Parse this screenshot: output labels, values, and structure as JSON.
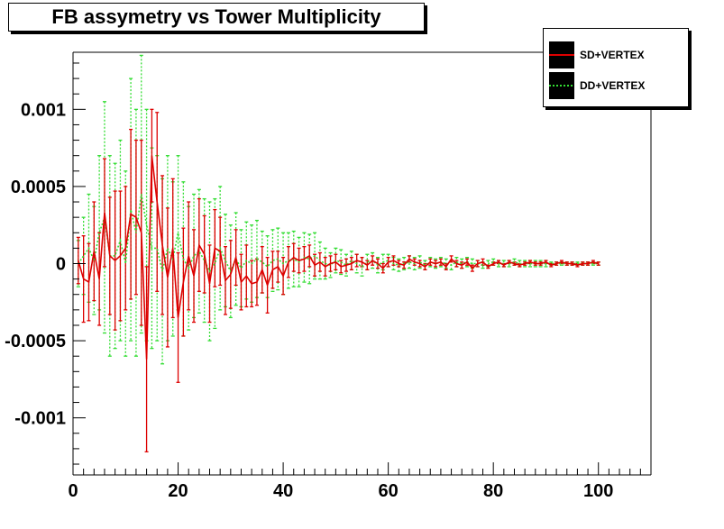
{
  "chart_data": {
    "type": "line",
    "title": "FB assymetry vs Tower Multiplicity",
    "xlabel": "",
    "ylabel": "",
    "xlim": [
      0,
      110
    ],
    "ylim": [
      -0.00137,
      0.00137
    ],
    "x_ticks": [
      0,
      20,
      40,
      60,
      80,
      100
    ],
    "x_tick_labels": [
      "0",
      "20",
      "40",
      "60",
      "80",
      "100"
    ],
    "y_ticks": [
      -0.001,
      -0.0005,
      0,
      0.0005,
      0.001
    ],
    "y_tick_labels": [
      "-0.001",
      "-0.0005",
      "0",
      "0.0005",
      "0.001"
    ],
    "grid": false,
    "legend_position": "top-right",
    "x": [
      1,
      2,
      3,
      4,
      5,
      6,
      7,
      8,
      9,
      10,
      11,
      12,
      13,
      14,
      15,
      16,
      17,
      18,
      19,
      20,
      21,
      22,
      23,
      24,
      25,
      26,
      27,
      28,
      29,
      30,
      31,
      32,
      33,
      34,
      35,
      36,
      37,
      38,
      39,
      40,
      41,
      42,
      43,
      44,
      45,
      46,
      47,
      48,
      49,
      50,
      51,
      52,
      53,
      54,
      55,
      56,
      57,
      58,
      59,
      60,
      61,
      62,
      63,
      64,
      65,
      66,
      67,
      68,
      69,
      70,
      71,
      72,
      73,
      74,
      75,
      76,
      77,
      78,
      79,
      80,
      81,
      82,
      83,
      84,
      85,
      86,
      87,
      88,
      89,
      90,
      91,
      92,
      93,
      94,
      95,
      96,
      97,
      98,
      99,
      100
    ],
    "series": [
      {
        "name": "SD+VERTEX",
        "color": "#dd0000",
        "style": "solid",
        "values": [
          2e-05,
          -0.0001,
          -0.00012,
          8e-05,
          -0.0001,
          0.00033,
          5e-05,
          2e-05,
          5e-05,
          0.0001,
          0.00032,
          0.0003,
          0.0002,
          -0.00062,
          0.0007,
          0.0004,
          0.00012,
          -9e-05,
          0.0001,
          -0.00035,
          -0.00012,
          5e-05,
          -8e-05,
          0.00012,
          6e-05,
          -0.00013,
          0.0001,
          8e-05,
          -0.00011,
          -7e-05,
          4e-05,
          -0.00012,
          -8e-05,
          -0.00013,
          -0.00012,
          -4e-05,
          -0.00014,
          -4e-05,
          -2e-05,
          -8e-05,
          1e-05,
          4e-05,
          2e-05,
          3e-05,
          5e-05,
          -1e-05,
          1e-05,
          -2e-05,
          0.0,
          1e-05,
          -2e-05,
          -1e-05,
          0.0,
          2e-05,
          1e-05,
          -1e-05,
          2e-05,
          0.0,
          -3e-05,
          1e-05,
          2e-05,
          0.0,
          -1e-05,
          3e-05,
          1e-05,
          0.0,
          -2e-05,
          1e-05,
          0.0,
          1e-05,
          -2e-05,
          3e-05,
          0.0,
          -1e-05,
          1e-05,
          -3e-05,
          0.0,
          1e-05,
          -2e-05,
          0.0,
          1e-05,
          -1e-05,
          1e-05,
          0.0,
          -1e-05,
          0.0,
          1e-05,
          0.0,
          0.0,
          1e-05,
          -1e-05,
          0.0,
          1e-05,
          0.0,
          0.0,
          -1e-05,
          0.0,
          0.0,
          1e-05,
          0.0
        ],
        "errors": [
          0.00015,
          0.00028,
          0.00025,
          0.00032,
          0.0003,
          0.00035,
          0.00038,
          0.00045,
          0.00042,
          0.0004,
          0.00055,
          0.0005,
          0.0006,
          0.0006,
          0.0003,
          0.00058,
          0.00045,
          0.00045,
          0.00045,
          0.00042,
          0.00035,
          0.00035,
          0.0003,
          0.0003,
          0.00025,
          0.00025,
          0.00025,
          0.00022,
          0.00022,
          0.00022,
          0.00018,
          0.00018,
          0.0002,
          0.00015,
          0.00015,
          0.00015,
          0.00018,
          0.00012,
          0.0001,
          0.00012,
          0.0001,
          9e-05,
          8e-05,
          8e-05,
          7e-05,
          7e-05,
          6e-05,
          6e-05,
          5e-05,
          5e-05,
          4e-05,
          4e-05,
          4e-05,
          4e-05,
          3e-05,
          3e-05,
          3e-05,
          3e-05,
          3e-05,
          3e-05,
          3e-05,
          2e-05,
          2e-05,
          2e-05,
          2e-05,
          2e-05,
          2e-05,
          2e-05,
          2e-05,
          2e-05,
          2e-05,
          2e-05,
          2e-05,
          2e-05,
          2e-05,
          2e-05,
          2e-05,
          2e-05,
          1e-05,
          1e-05,
          1e-05,
          1e-05,
          1e-05,
          1e-05,
          1e-05,
          1e-05,
          1e-05,
          1e-05,
          1e-05,
          1e-05,
          1e-05,
          1e-05,
          1e-05,
          1e-05,
          1e-05,
          1e-05,
          1e-05,
          1e-05,
          1e-05,
          1e-05
        ]
      },
      {
        "name": "DD+VERTEX",
        "color": "#33dd33",
        "style": "dotted",
        "values": [
          0.0,
          5e-05,
          0.0001,
          2e-05,
          0.0002,
          0.0003,
          5e-05,
          5e-05,
          0.00015,
          0.0,
          0.00035,
          0.0002,
          0.00045,
          0.00025,
          0.0001,
          0.0001,
          -5e-05,
          0.0001,
          3e-05,
          0.0002,
          3e-05,
          -3e-05,
          5e-05,
          8e-05,
          2e-05,
          -5e-05,
          0.0,
          0.0001,
          2e-05,
          -5e-05,
          3e-05,
          -3e-05,
          2e-05,
          0.0,
          3e-05,
          1e-05,
          -2e-05,
          2e-05,
          3e-05,
          0.0,
          2e-05,
          3e-05,
          1e-05,
          4e-05,
          3e-05,
          5e-05,
          2e-05,
          0.0,
          -1e-05,
          2e-05,
          1e-05,
          -1e-05,
          2e-05,
          0.0,
          -2e-05,
          1e-05,
          2e-05,
          -1e-05,
          1e-05,
          2e-05,
          0.0,
          -1e-05,
          0.0,
          1e-05,
          0.0,
          1e-05,
          -1e-05,
          1e-05,
          0.0,
          1e-05,
          0.0,
          -1e-05,
          1e-05,
          0.0,
          1e-05,
          0.0,
          0.0,
          -1e-05,
          0.0,
          1e-05,
          0.0,
          0.0,
          0.0,
          1e-05,
          0.0,
          0.0,
          0.0,
          0.0,
          0.0,
          0.0,
          0.0,
          0.0,
          0.0,
          0.0,
          0.0,
          0.0,
          0.0,
          0.0,
          0.0,
          0.0
        ],
        "errors": [
          0.00015,
          0.00025,
          0.00035,
          0.00035,
          0.0005,
          0.00075,
          0.00065,
          0.0006,
          0.00065,
          0.0006,
          0.00085,
          0.0008,
          0.0009,
          0.00075,
          0.00065,
          0.0006,
          0.0006,
          0.0006,
          0.0005,
          0.0005,
          0.0005,
          0.0004,
          0.0004,
          0.0004,
          0.0004,
          0.00045,
          0.00042,
          0.0004,
          0.0003,
          0.0003,
          0.0003,
          0.00025,
          0.00025,
          0.00025,
          0.00025,
          0.0002,
          0.0002,
          0.0002,
          0.0002,
          0.0002,
          0.00018,
          0.00018,
          0.00016,
          0.00016,
          0.00016,
          0.00015,
          0.00012,
          0.0001,
          8e-05,
          8e-05,
          8e-05,
          7e-05,
          6e-05,
          6e-05,
          6e-05,
          5e-05,
          5e-05,
          5e-05,
          5e-05,
          4e-05,
          4e-05,
          4e-05,
          4e-05,
          4e-05,
          4e-05,
          4e-05,
          3e-05,
          3e-05,
          3e-05,
          3e-05,
          3e-05,
          3e-05,
          3e-05,
          3e-05,
          3e-05,
          3e-05,
          2e-05,
          2e-05,
          2e-05,
          2e-05,
          2e-05,
          2e-05,
          2e-05,
          2e-05,
          2e-05,
          2e-05,
          2e-05,
          2e-05,
          2e-05,
          2e-05,
          1e-05,
          1e-05,
          1e-05,
          1e-05,
          1e-05,
          1e-05,
          1e-05,
          1e-05,
          1e-05,
          1e-05
        ]
      }
    ]
  }
}
